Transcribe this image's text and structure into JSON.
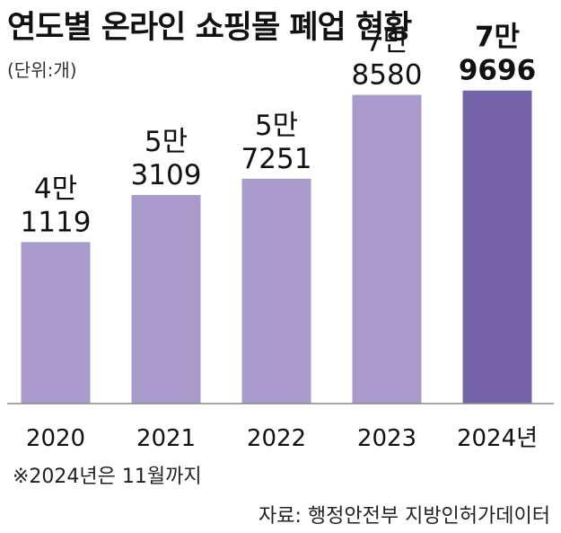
{
  "chart_data": {
    "type": "bar",
    "title": "연도별 온라인 쇼핑몰 폐업 현황",
    "unit_label": "(단위:개)",
    "categories": [
      "2020",
      "2021",
      "2022",
      "2023",
      "2024년"
    ],
    "values": [
      41119,
      53109,
      57251,
      78580,
      79696
    ],
    "value_labels": [
      [
        "4만",
        "1119"
      ],
      [
        "5만",
        "3109"
      ],
      [
        "5만",
        "7251"
      ],
      [
        "7만",
        "8580"
      ],
      [
        "7만",
        "9696"
      ]
    ],
    "ylim": [
      0,
      100000
    ],
    "grid": false,
    "colors": {
      "bar": "#a99bcc",
      "highlight": "#7563a9",
      "axis": "#888888"
    },
    "highlight_index": 4
  },
  "footnote": "※2024년은 11월까지",
  "source": "자료: 행정안전부 지방인허가데이터"
}
